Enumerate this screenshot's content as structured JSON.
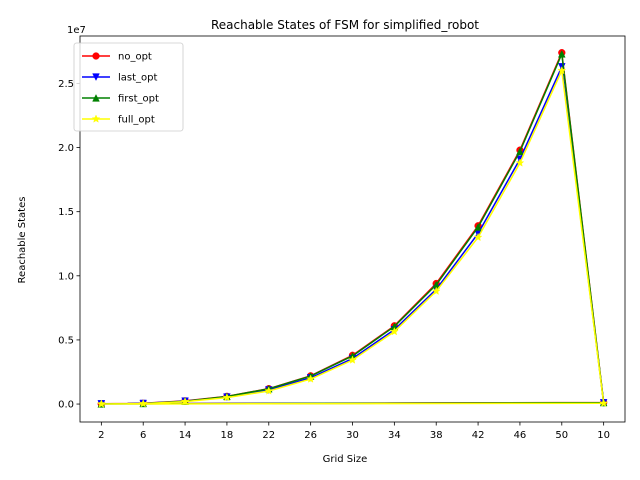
{
  "chart_data": {
    "type": "line",
    "title": "Reachable States of FSM for simplified_robot",
    "xlabel": "Grid Size",
    "ylabel": "Reachable States",
    "offset_label": "1e7",
    "categories": [
      "2",
      "6",
      "14",
      "18",
      "22",
      "26",
      "30",
      "34",
      "38",
      "42",
      "46",
      "50",
      "10"
    ],
    "ylim": [
      -1400000,
      28700000
    ],
    "yticks": [
      0,
      5000000,
      10000000,
      15000000,
      20000000,
      25000000
    ],
    "ytick_labels": [
      "0.0",
      "0.5",
      "1.0",
      "1.5",
      "2.0",
      "2.5"
    ],
    "legend_position": "upper-left",
    "grid": false,
    "series": [
      {
        "name": "no_opt",
        "color": "#ff0000",
        "marker_color": "#ff0000",
        "marker": "circle",
        "points": [
          {
            "x": "2",
            "y": 20000
          },
          {
            "x": "6",
            "y": 60000
          },
          {
            "x": "14",
            "y": 250000
          },
          {
            "x": "18",
            "y": 600000
          },
          {
            "x": "22",
            "y": 1200000
          },
          {
            "x": "26",
            "y": 2200000
          },
          {
            "x": "30",
            "y": 3800000
          },
          {
            "x": "34",
            "y": 6100000
          },
          {
            "x": "38",
            "y": 9400000
          },
          {
            "x": "42",
            "y": 13900000
          },
          {
            "x": "46",
            "y": 19800000
          },
          {
            "x": "50",
            "y": 27400000
          },
          {
            "x": "10",
            "y": 120000
          },
          {
            "x": "2",
            "y": 20000
          }
        ]
      },
      {
        "name": "last_opt",
        "color": "#0000ff",
        "marker_color": "#0000ff",
        "marker": "triangle-down",
        "points": [
          {
            "x": "2",
            "y": 15000
          },
          {
            "x": "6",
            "y": 50000
          },
          {
            "x": "14",
            "y": 230000
          },
          {
            "x": "18",
            "y": 550000
          },
          {
            "x": "22",
            "y": 1100000
          },
          {
            "x": "26",
            "y": 2050000
          },
          {
            "x": "30",
            "y": 3550000
          },
          {
            "x": "34",
            "y": 5800000
          },
          {
            "x": "38",
            "y": 8950000
          },
          {
            "x": "42",
            "y": 13300000
          },
          {
            "x": "46",
            "y": 19100000
          },
          {
            "x": "50",
            "y": 26300000
          },
          {
            "x": "10",
            "y": 100000
          },
          {
            "x": "2",
            "y": 15000
          }
        ]
      },
      {
        "name": "first_opt",
        "color": "#008000",
        "marker_color": "#008000",
        "marker": "triangle-up",
        "points": [
          {
            "x": "2",
            "y": 10000
          },
          {
            "x": "6",
            "y": 40000
          },
          {
            "x": "14",
            "y": 220000
          },
          {
            "x": "18",
            "y": 590000
          },
          {
            "x": "22",
            "y": 1190000
          },
          {
            "x": "26",
            "y": 2180000
          },
          {
            "x": "30",
            "y": 3750000
          },
          {
            "x": "34",
            "y": 6050000
          },
          {
            "x": "38",
            "y": 9300000
          },
          {
            "x": "42",
            "y": 13800000
          },
          {
            "x": "46",
            "y": 19700000
          },
          {
            "x": "50",
            "y": 27300000
          },
          {
            "x": "10",
            "y": 110000
          },
          {
            "x": "2",
            "y": 10000
          }
        ]
      },
      {
        "name": "full_opt",
        "color": "#ffff00",
        "marker_color": "#ffff00",
        "marker": "star",
        "points": [
          {
            "x": "2",
            "y": 5000
          },
          {
            "x": "6",
            "y": 30000
          },
          {
            "x": "14",
            "y": 190000
          },
          {
            "x": "18",
            "y": 500000
          },
          {
            "x": "22",
            "y": 1020000
          },
          {
            "x": "26",
            "y": 1950000
          },
          {
            "x": "30",
            "y": 3430000
          },
          {
            "x": "34",
            "y": 5650000
          },
          {
            "x": "38",
            "y": 8800000
          },
          {
            "x": "42",
            "y": 13000000
          },
          {
            "x": "46",
            "y": 18800000
          },
          {
            "x": "50",
            "y": 26000000
          },
          {
            "x": "10",
            "y": 60000
          },
          {
            "x": "2",
            "y": 5000
          }
        ]
      }
    ]
  }
}
